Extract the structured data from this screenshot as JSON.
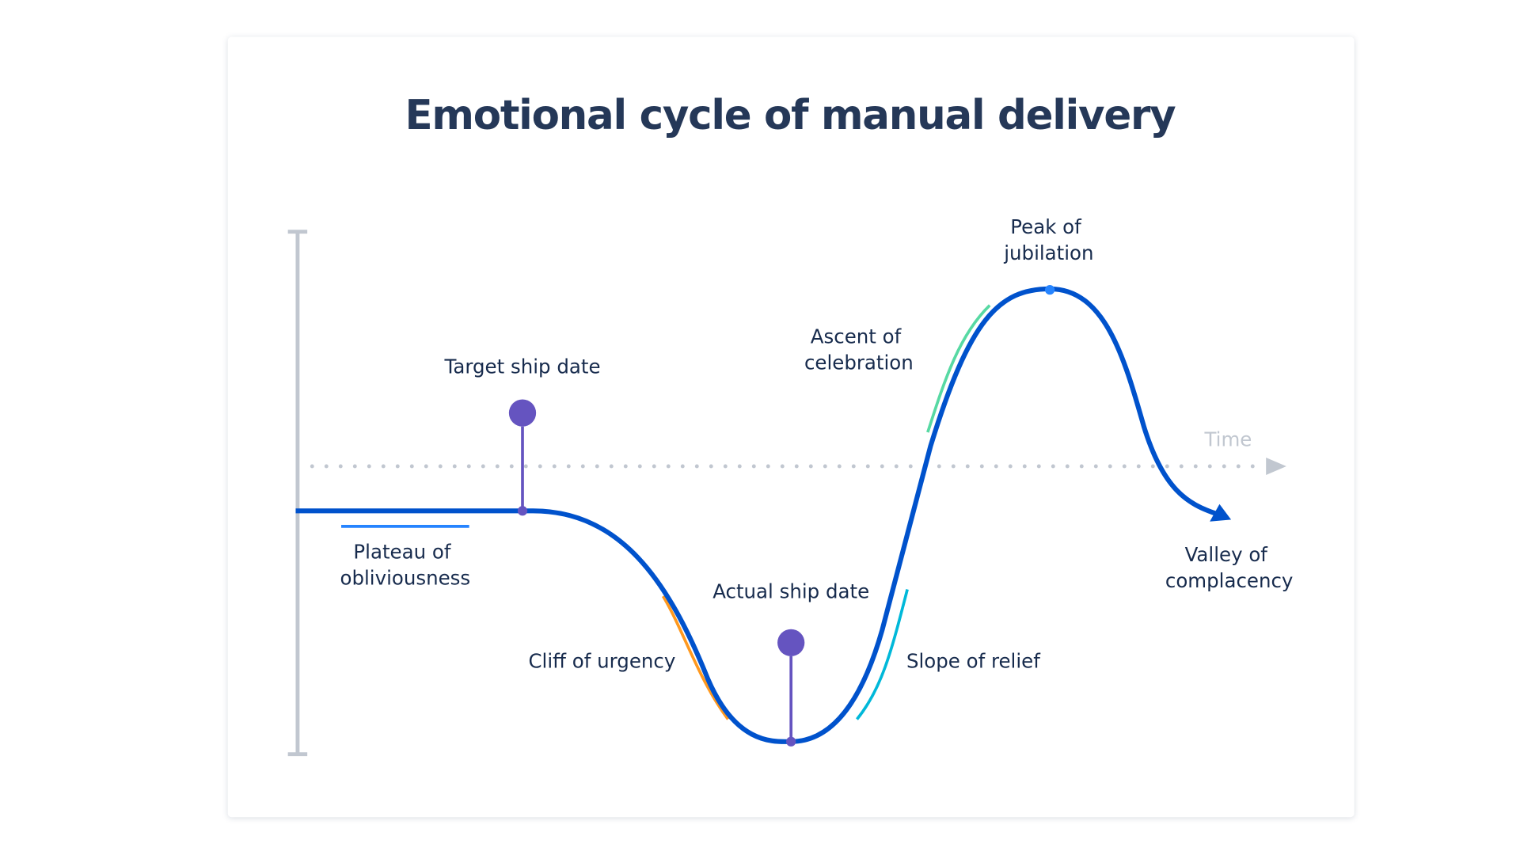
{
  "title": "Emotional cycle of manual delivery",
  "axis": {
    "time_label": "Time"
  },
  "markers": [
    {
      "label": "Target ship date"
    },
    {
      "label": "Actual ship date"
    }
  ],
  "phases": [
    {
      "line1": "Plateau of",
      "line2": "obliviousness",
      "color": "#2684ff"
    },
    {
      "line1": "Cliff of urgency",
      "color": "#ff991f"
    },
    {
      "line1": "Slope of relief",
      "color": "#00b8d9"
    },
    {
      "line1": "Ascent of",
      "line2": "celebration",
      "color": "#57d9a3"
    },
    {
      "line1": "Peak of",
      "line2": "jubilation"
    },
    {
      "line1": "Valley of",
      "line2": "complacency"
    }
  ],
  "colors": {
    "curve": "#0052cc",
    "marker": "#6554c0",
    "axis": "#c1c7d0",
    "title": "#253858"
  }
}
